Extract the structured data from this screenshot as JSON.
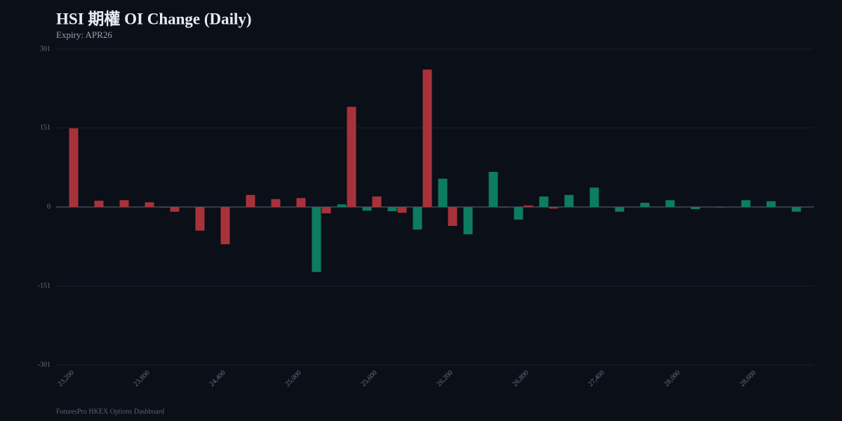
{
  "chart_data": {
    "type": "bar",
    "title": "HSI 期權 OI Change (Daily)",
    "subtitle": "Expiry: APR26",
    "footer": "FuturesPro HKEX Options Dashboard",
    "categories": [
      "23,200",
      null,
      null,
      "23,800",
      null,
      null,
      "24,400",
      null,
      null,
      "25,000",
      null,
      null,
      "25,600",
      null,
      null,
      "26,200",
      null,
      null,
      "26,800",
      null,
      null,
      "27,400",
      null,
      null,
      "28,000",
      null,
      null,
      "28,600",
      null,
      null
    ],
    "series": [
      {
        "color": "#0e7c5f",
        "values": [
          0,
          0,
          0,
          0,
          -1,
          0,
          0,
          0,
          0,
          0,
          -124,
          5,
          -7,
          -8,
          -43,
          54,
          -52,
          67,
          -24,
          20,
          23,
          37,
          -9,
          8,
          13,
          -4,
          -1,
          13,
          11,
          -9
        ]
      },
      {
        "color": "#a8323a",
        "values": [
          150,
          12,
          13,
          9,
          -9,
          -45,
          -71,
          23,
          15,
          17,
          -12,
          191,
          20,
          -11,
          262,
          -36,
          0,
          -1,
          3,
          -3,
          0,
          0,
          0,
          0,
          0,
          0,
          0,
          0,
          0,
          0
        ]
      }
    ],
    "ylim": [
      -301,
      301
    ],
    "yticks": [
      -301,
      -151,
      0,
      151,
      301
    ],
    "grid": true
  }
}
